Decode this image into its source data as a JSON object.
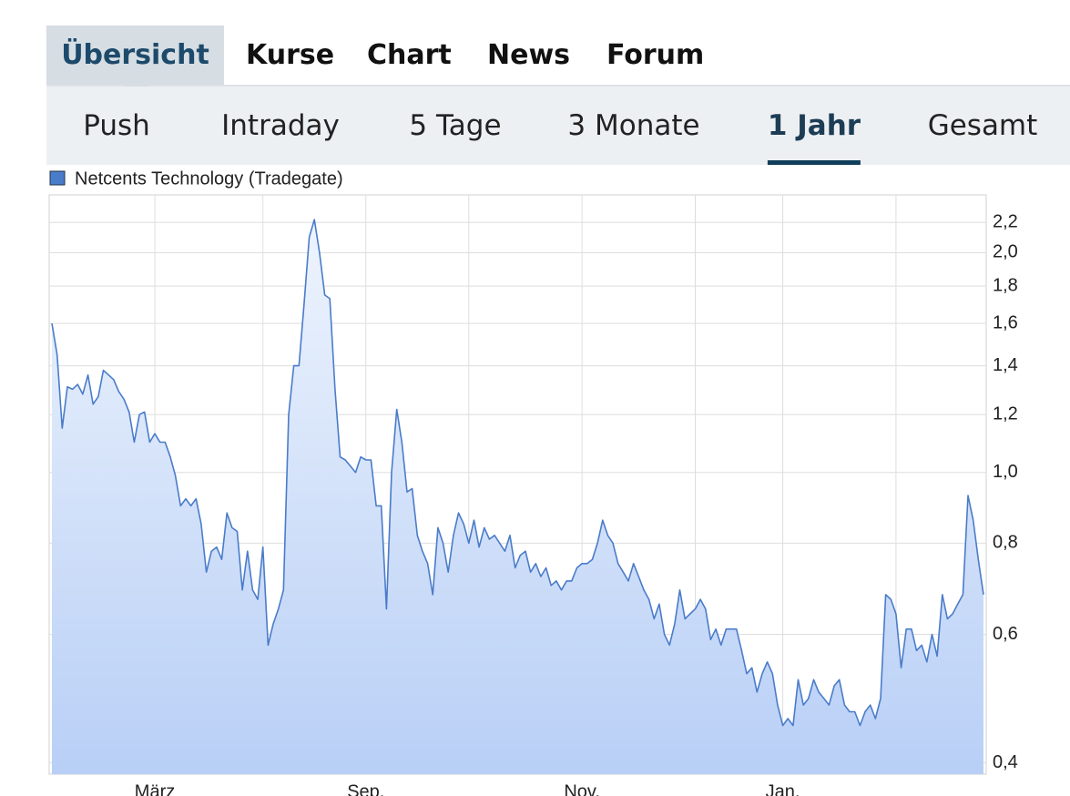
{
  "tabs": [
    "Übersicht",
    "Kurse",
    "Chart",
    "News",
    "Forum"
  ],
  "subtabs": [
    "Push",
    "Intraday",
    "5 Tage",
    "3 Monate",
    "1 Jahr",
    "Gesamt"
  ],
  "chart_data": {
    "type": "line",
    "yscale": "log",
    "grid": true,
    "series": [
      {
        "name": "Netcents Technology (Tradegate)",
        "color": "#4a7cc9",
        "values": [
          1.6,
          1.45,
          1.15,
          1.31,
          1.3,
          1.32,
          1.28,
          1.36,
          1.24,
          1.27,
          1.38,
          1.36,
          1.34,
          1.29,
          1.26,
          1.21,
          1.1,
          1.2,
          1.21,
          1.1,
          1.13,
          1.1,
          1.1,
          1.05,
          0.99,
          0.9,
          0.92,
          0.9,
          0.92,
          0.85,
          0.73,
          0.78,
          0.79,
          0.76,
          0.88,
          0.84,
          0.83,
          0.69,
          0.78,
          0.69,
          0.67,
          0.79,
          0.58,
          0.62,
          0.65,
          0.69,
          1.2,
          1.4,
          1.4,
          1.7,
          2.1,
          2.22,
          2.0,
          1.75,
          1.73,
          1.3,
          1.05,
          1.04,
          1.02,
          1.0,
          1.05,
          1.04,
          1.04,
          0.9,
          0.9,
          0.65,
          1.0,
          1.22,
          1.1,
          0.94,
          0.95,
          0.82,
          0.78,
          0.75,
          0.68,
          0.84,
          0.8,
          0.73,
          0.82,
          0.88,
          0.85,
          0.8,
          0.86,
          0.79,
          0.84,
          0.81,
          0.82,
          0.8,
          0.78,
          0.82,
          0.74,
          0.77,
          0.78,
          0.73,
          0.75,
          0.72,
          0.74,
          0.7,
          0.71,
          0.69,
          0.71,
          0.71,
          0.74,
          0.75,
          0.75,
          0.76,
          0.8,
          0.86,
          0.82,
          0.8,
          0.75,
          0.73,
          0.71,
          0.75,
          0.72,
          0.69,
          0.67,
          0.63,
          0.66,
          0.6,
          0.58,
          0.62,
          0.69,
          0.63,
          0.64,
          0.65,
          0.67,
          0.65,
          0.59,
          0.61,
          0.58,
          0.61,
          0.61,
          0.61,
          0.57,
          0.53,
          0.54,
          0.5,
          0.53,
          0.55,
          0.53,
          0.48,
          0.45,
          0.46,
          0.45,
          0.52,
          0.48,
          0.49,
          0.52,
          0.5,
          0.49,
          0.48,
          0.51,
          0.52,
          0.48,
          0.47,
          0.47,
          0.45,
          0.47,
          0.48,
          0.46,
          0.49,
          0.68,
          0.67,
          0.64,
          0.54,
          0.61,
          0.61,
          0.57,
          0.58,
          0.55,
          0.6,
          0.56,
          0.68,
          0.63,
          0.64,
          0.66,
          0.68,
          0.93,
          0.86,
          0.76,
          0.68
        ]
      }
    ],
    "xticks": [
      {
        "value": 20,
        "label": "März"
      },
      {
        "value": 41,
        "label": null
      },
      {
        "value": 61,
        "label": "Sep."
      },
      {
        "value": 81,
        "label": null
      },
      {
        "value": 103,
        "label": "Nov."
      },
      {
        "value": 125,
        "label": null
      },
      {
        "value": 142,
        "label": "Jan."
      },
      {
        "value": 164,
        "label": null
      }
    ],
    "ylim": [
      0.386,
      2.4
    ],
    "yticks": [
      {
        "value": 0.4,
        "label": "0,4"
      },
      {
        "value": 0.6,
        "label": "0,6"
      },
      {
        "value": 0.8,
        "label": "0,8"
      },
      {
        "value": 1.0,
        "label": "1,0"
      },
      {
        "value": 1.2,
        "label": "1,2"
      },
      {
        "value": 1.4,
        "label": "1,4"
      },
      {
        "value": 1.6,
        "label": "1,6"
      },
      {
        "value": 1.8,
        "label": "1,8"
      },
      {
        "value": 2.0,
        "label": "2,0"
      },
      {
        "value": 2.2,
        "label": "2,2"
      }
    ]
  }
}
